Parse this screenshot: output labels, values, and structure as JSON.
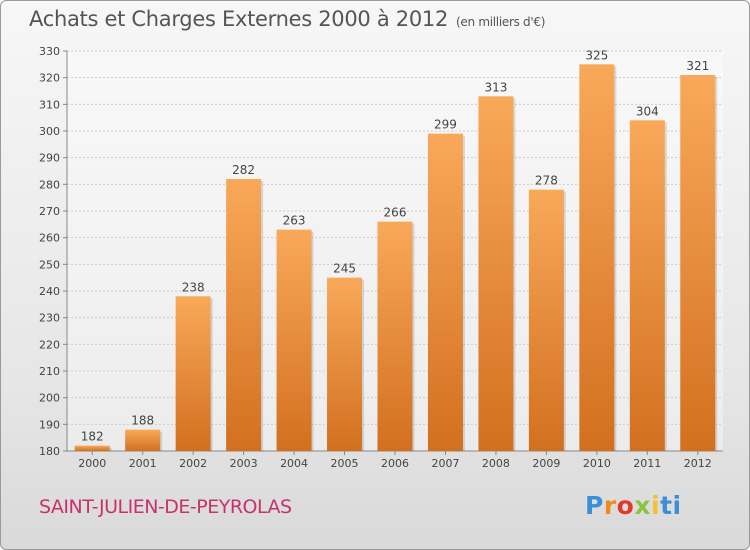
{
  "header": {
    "title": "Achats et Charges Externes 2000 à 2012",
    "unit": "(en milliers d'€)"
  },
  "footer": {
    "town": "SAINT-JULIEN-DE-PEYROLAS",
    "logo_letters": [
      "P",
      "r",
      "o",
      "x",
      "i",
      "ti"
    ]
  },
  "colors": {
    "bar_top": "#f9a85a",
    "bar_bottom": "#d2701f",
    "title": "#555555",
    "town": "#c8326b",
    "grid": "#cccccc"
  },
  "chart_data": {
    "type": "bar",
    "title": "Achats et Charges Externes 2000 à 2012",
    "subtitle": "(en milliers d'€)",
    "categories": [
      "2000",
      "2001",
      "2002",
      "2003",
      "2004",
      "2005",
      "2006",
      "2007",
      "2008",
      "2009",
      "2010",
      "2011",
      "2012"
    ],
    "values": [
      182,
      188,
      238,
      282,
      263,
      245,
      266,
      299,
      313,
      278,
      325,
      304,
      321
    ],
    "ylim": [
      180,
      330
    ],
    "yticks": [
      180,
      190,
      200,
      210,
      220,
      230,
      240,
      250,
      260,
      270,
      280,
      290,
      300,
      310,
      320,
      330
    ],
    "xlabel": "",
    "ylabel": "",
    "grid": true,
    "legend": "none"
  }
}
